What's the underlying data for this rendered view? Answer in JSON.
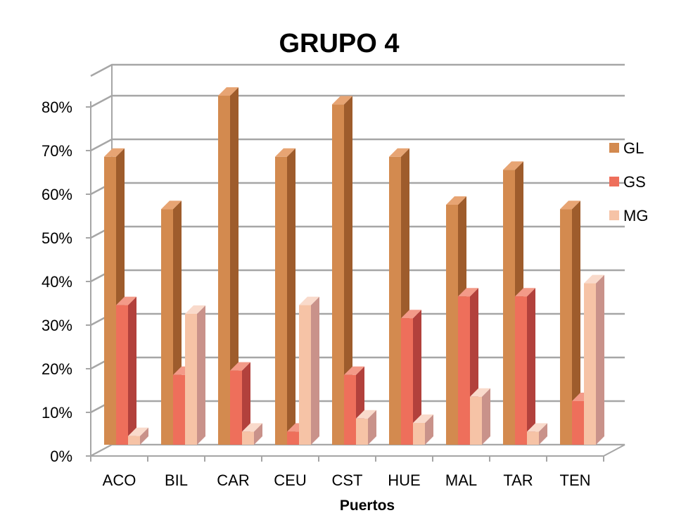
{
  "chart_data": {
    "type": "bar",
    "title": "GRUPO 4",
    "xlabel": "Puertos",
    "ylabel": "",
    "ylim": [
      0,
      0.8
    ],
    "yticks": [
      0,
      0.1,
      0.2,
      0.3,
      0.4,
      0.5,
      0.6,
      0.7,
      0.8
    ],
    "ytick_labels": [
      "0%",
      "10%",
      "20%",
      "30%",
      "40%",
      "50%",
      "60%",
      "70%",
      "80%"
    ],
    "categories": [
      "ACO",
      "BIL",
      "CAR",
      "CEU",
      "CST",
      "HUE",
      "MAL",
      "TAR",
      "TEN"
    ],
    "series": [
      {
        "name": "GL",
        "values": [
          0.66,
          0.54,
          0.8,
          0.66,
          0.78,
          0.66,
          0.55,
          0.63,
          0.54
        ]
      },
      {
        "name": "GS",
        "values": [
          0.32,
          0.16,
          0.17,
          0.03,
          0.16,
          0.29,
          0.34,
          0.34,
          0.1
        ]
      },
      {
        "name": "MG",
        "values": [
          0.02,
          0.3,
          0.03,
          0.32,
          0.06,
          0.05,
          0.11,
          0.03,
          0.37
        ]
      }
    ],
    "colors": {
      "GL": {
        "front": "#D38A4F",
        "side": "#9E5C2C",
        "top": "#E7A473"
      },
      "GS": {
        "front": "#EE6F5B",
        "side": "#B2413C",
        "top": "#F39A88"
      },
      "MG": {
        "front": "#F6C3A6",
        "side": "#C9928A",
        "top": "#F9DACB"
      }
    },
    "grid": true,
    "legend": "right",
    "three_d": true
  }
}
